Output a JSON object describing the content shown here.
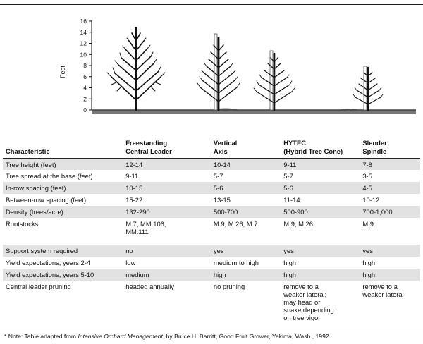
{
  "figure": {
    "y_axis_label": "Feet",
    "y_ticks": [
      "16",
      "14",
      "12",
      "10",
      "8",
      "6",
      "4",
      "2",
      "0"
    ]
  },
  "table": {
    "headers": [
      [
        "Characteristic"
      ],
      [
        "Freestanding",
        "Central Leader"
      ],
      [
        "Vertical",
        "Axis"
      ],
      [
        "HYTEC",
        "(Hybrid Tree Cone)"
      ],
      [
        "Slender",
        "Spindle"
      ]
    ],
    "rows": [
      {
        "shade": true,
        "tall": 0,
        "cells": [
          [
            "Tree height (feet)"
          ],
          [
            "12-14"
          ],
          [
            "10-14"
          ],
          [
            "9-11"
          ],
          [
            "7-8"
          ]
        ]
      },
      {
        "shade": false,
        "tall": 0,
        "cells": [
          [
            "Tree spread at the base (feet)"
          ],
          [
            "9-11"
          ],
          [
            "5-7"
          ],
          [
            "5-7"
          ],
          [
            "3-5"
          ]
        ]
      },
      {
        "shade": true,
        "tall": 0,
        "cells": [
          [
            "In-row spacing (feet)"
          ],
          [
            "10-15"
          ],
          [
            "5-6"
          ],
          [
            "5-6"
          ],
          [
            "4-5"
          ]
        ]
      },
      {
        "shade": false,
        "tall": 0,
        "cells": [
          [
            "Between-row spacing (feet)"
          ],
          [
            "15-22"
          ],
          [
            "13-15"
          ],
          [
            "11-14"
          ],
          [
            "10-12"
          ]
        ]
      },
      {
        "shade": true,
        "tall": 0,
        "cells": [
          [
            "Density (trees/acre)"
          ],
          [
            "132-290"
          ],
          [
            "500-700"
          ],
          [
            "500-900"
          ],
          [
            "700-1,000"
          ]
        ]
      },
      {
        "shade": false,
        "tall": 2,
        "cells": [
          [
            "Rootstocks"
          ],
          [
            "M.7, MM.106,",
            "MM.111"
          ],
          [
            "M.9, M.26, M.7"
          ],
          [
            "M.9, M.26"
          ],
          [
            "M.9"
          ]
        ]
      },
      {
        "shade": true,
        "tall": 0,
        "cells": [
          [
            "Support system required"
          ],
          [
            "no"
          ],
          [
            "yes"
          ],
          [
            "yes"
          ],
          [
            "yes"
          ]
        ]
      },
      {
        "shade": false,
        "tall": 0,
        "cells": [
          [
            "Yield expectations, years 2-4"
          ],
          [
            "low"
          ],
          [
            "medium to high"
          ],
          [
            "high"
          ],
          [
            "high"
          ]
        ]
      },
      {
        "shade": true,
        "tall": 0,
        "cells": [
          [
            "Yield expectations, years 5-10"
          ],
          [
            "medium"
          ],
          [
            "high"
          ],
          [
            "high"
          ],
          [
            "high"
          ]
        ]
      },
      {
        "shade": false,
        "tall": 4,
        "cells": [
          [
            "Central leader pruning"
          ],
          [
            "headed annually"
          ],
          [
            "no pruning"
          ],
          [
            "remove to a",
            "weaker lateral;",
            "may head or",
            "snake depending",
            "on tree vigor"
          ],
          [
            "remove to a",
            "weaker lateral"
          ]
        ]
      }
    ]
  },
  "footnote": {
    "prefix": "* Note: Table adapted from ",
    "title": "Intensive Orchard Management",
    "suffix": ", by Bruce H. Barritt, Good Fruit Grower, Yakima, Wash., 1992."
  }
}
